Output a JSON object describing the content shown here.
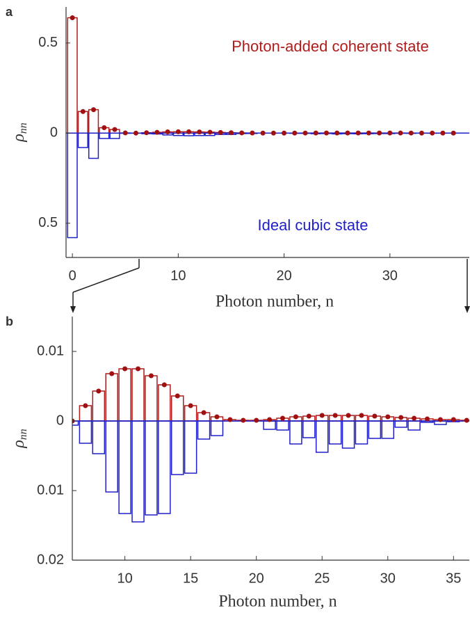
{
  "chart_data": [
    {
      "type": "bar",
      "panel": "a",
      "ylabel": "ρ",
      "ylabel_sub": "nn",
      "xlabel": "Photon number, n",
      "annotations": [
        {
          "text": "Photon-added coherent state",
          "color": "#b01c1c"
        },
        {
          "text": "Ideal cubic state",
          "color": "#2020c8"
        }
      ],
      "x": [
        0,
        1,
        2,
        3,
        4,
        5,
        6,
        7,
        8,
        9,
        10,
        11,
        12,
        13,
        14,
        15,
        16,
        17,
        18,
        19,
        20,
        21,
        22,
        23,
        24,
        25,
        26,
        27,
        28,
        29,
        30,
        31,
        32,
        33,
        34,
        35,
        36
      ],
      "series": [
        {
          "name": "Photon-added coherent state",
          "color": "#b01c1c",
          "values": [
            0.64,
            0.12,
            0.13,
            0.03,
            0.02,
            0.001,
            0,
            0.0022,
            0.0043,
            0.0068,
            0.0075,
            0.0075,
            0.0065,
            0.0052,
            0.0036,
            0.0022,
            0.0012,
            0.0006,
            0.0002,
            0.0001,
            0.0001,
            0.0002,
            0.0004,
            0.0006,
            0.0007,
            0.0008,
            0.0008,
            0.0008,
            0.0008,
            0.0007,
            0.0006,
            0.0005,
            0.0004,
            0.0003,
            0.0002,
            0.0002,
            0.0001
          ]
        },
        {
          "name": "Ideal cubic state",
          "color": "#2020c8",
          "values": [
            -0.58,
            -0.08,
            -0.14,
            -0.03,
            -0.03,
            -0.001,
            -0.0006,
            -0.0032,
            -0.0047,
            -0.0102,
            -0.0133,
            -0.0145,
            -0.0135,
            -0.0133,
            -0.0077,
            -0.0075,
            -0.0026,
            -0.0021,
            0,
            0,
            0,
            -0.0012,
            -0.0013,
            -0.0033,
            -0.0024,
            -0.0045,
            -0.0033,
            -0.0039,
            -0.0033,
            -0.0025,
            -0.0025,
            -0.0009,
            -0.0013,
            -0.0002,
            -0.0005,
            -0.0001,
            0
          ]
        }
      ],
      "xlim": [
        -0.6,
        37.5
      ],
      "xticks": [
        0,
        10,
        20,
        30
      ],
      "ylim": [
        -0.69,
        0.7
      ],
      "yticks": [
        {
          "value": -0.5,
          "label": "0.5"
        },
        0,
        0.5
      ]
    },
    {
      "type": "bar",
      "panel": "b",
      "ylabel": "ρ",
      "ylabel_sub": "nn",
      "xlabel": "Photon number, n",
      "x": [
        6,
        7,
        8,
        9,
        10,
        11,
        12,
        13,
        14,
        15,
        16,
        17,
        18,
        19,
        20,
        21,
        22,
        23,
        24,
        25,
        26,
        27,
        28,
        29,
        30,
        31,
        32,
        33,
        34,
        35,
        36
      ],
      "series": [
        {
          "name": "Photon-added coherent state",
          "color": "#b01c1c",
          "values": [
            0,
            0.0022,
            0.0043,
            0.0068,
            0.0075,
            0.0075,
            0.0065,
            0.0052,
            0.0036,
            0.0022,
            0.0012,
            0.0006,
            0.0002,
            0.0001,
            0.0001,
            0.0002,
            0.0004,
            0.0006,
            0.0007,
            0.0008,
            0.0008,
            0.0008,
            0.0008,
            0.0007,
            0.0006,
            0.0005,
            0.0004,
            0.0003,
            0.0002,
            0.0002,
            0.0001
          ]
        },
        {
          "name": "Ideal cubic state",
          "color": "#2020c8",
          "values": [
            -0.0006,
            -0.0032,
            -0.0047,
            -0.0102,
            -0.0133,
            -0.0145,
            -0.0135,
            -0.0133,
            -0.0077,
            -0.0075,
            -0.0026,
            -0.0021,
            0,
            0,
            0,
            -0.0012,
            -0.0013,
            -0.0033,
            -0.0024,
            -0.0045,
            -0.0033,
            -0.0039,
            -0.0033,
            -0.0025,
            -0.0025,
            -0.0009,
            -0.0013,
            -0.0002,
            -0.0005,
            -0.0001,
            0
          ]
        }
      ],
      "xlim": [
        6,
        36.2
      ],
      "xticks": [
        10,
        15,
        20,
        25,
        30,
        35
      ],
      "ylim": [
        -0.02,
        0.015
      ],
      "yticks": [
        {
          "value": -0.02,
          "label": "0.02"
        },
        {
          "value": -0.01,
          "label": "0.01"
        },
        0,
        0.01
      ]
    }
  ]
}
